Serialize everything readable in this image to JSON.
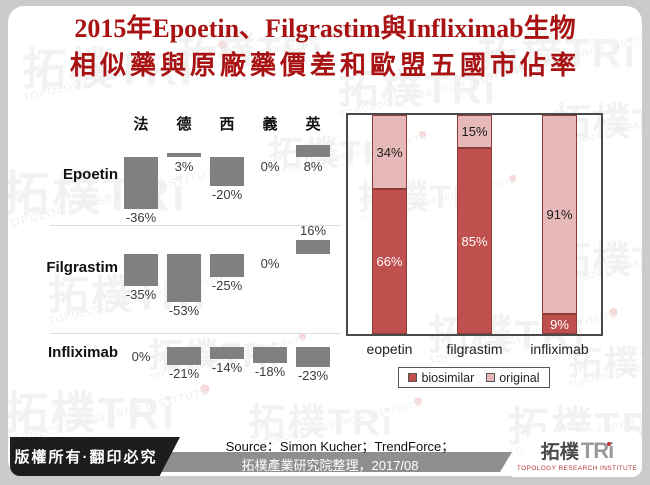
{
  "title": {
    "line1": "2015年Epoetin、Filgrastim與Infliximab生物",
    "line2": "相似藥與原廠藥價差和歐盟五國市佔率"
  },
  "chart_data": [
    {
      "type": "bar",
      "title": "生物相似藥與原廠藥價差",
      "columns": [
        "法",
        "德",
        "西",
        "義",
        "英"
      ],
      "rows": [
        {
          "label": "Epoetin",
          "values": [
            -36,
            3,
            -20,
            0,
            8
          ]
        },
        {
          "label": "Filgrastim",
          "values": [
            -35,
            -53,
            -25,
            0,
            16
          ]
        },
        {
          "label": "Infliximab",
          "values": [
            0,
            -21,
            -14,
            -18,
            -23
          ]
        }
      ],
      "value_suffix": "%",
      "bar_color": "#808080",
      "layout": "each drug row has its own zero baseline; negative bars hang downward"
    },
    {
      "type": "stacked-bar",
      "title": "歐盟五國市佔率",
      "categories": [
        "eopetin",
        "filgrastim",
        "infliximab"
      ],
      "series": [
        {
          "name": "biosimilar",
          "color": "#c0504d",
          "text_color": "#ffffff",
          "values": [
            66,
            85,
            9
          ]
        },
        {
          "name": "original",
          "color": "#e6b9b8",
          "text_color": "#1a1a1a",
          "values": [
            34,
            15,
            91
          ]
        }
      ],
      "value_suffix": "%",
      "ylim": [
        0,
        100
      ],
      "grid": false,
      "legend_position": "bottom"
    }
  ],
  "footer": {
    "copyright": "版權所有·翻印必究",
    "source_line1": "Source：Simon Kucher；TrendForce；",
    "source_line2": "拓樸產業研究院整理，2017/08",
    "logo": {
      "cjk": "拓樸",
      "latin": "TRi",
      "subtitle": "TOPOLOGY RESEARCH INSTITUTE"
    }
  },
  "watermark": {
    "cjk": "拓樸",
    "latin": "TRi",
    "subtitle": "TOPOLOGY RESEARCH INSTITUTE"
  },
  "colors": {
    "title_red": "#a81212",
    "bar_gray": "#808080",
    "biosimilar_red": "#c0504d",
    "original_pink": "#e6b9b8",
    "segment_border": "#8e3b39",
    "source_bar_gray": "#8f8f8f",
    "copyright_black": "#1d1d1d"
  }
}
